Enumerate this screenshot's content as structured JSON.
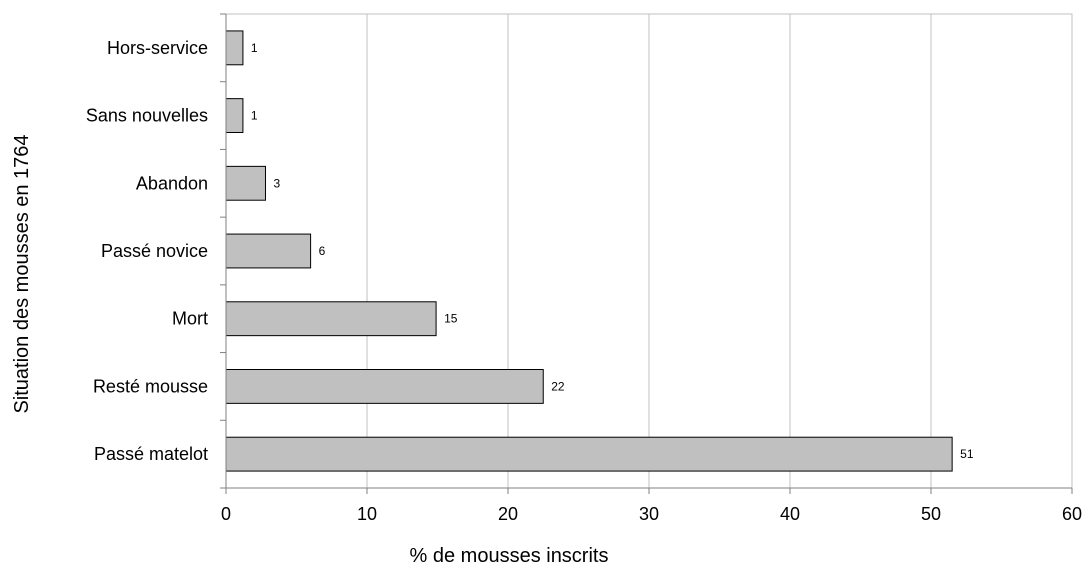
{
  "chart_data": {
    "type": "bar",
    "orientation": "horizontal",
    "categories": [
      "Hors-service",
      "Sans nouvelles",
      "Abandon",
      "Passé novice",
      "Mort",
      "Resté mousse",
      "Passé matelot"
    ],
    "values": [
      1.2,
      1.2,
      2.8,
      6.0,
      14.9,
      22.5,
      51.5
    ],
    "data_labels": [
      "1",
      "1",
      "3",
      "6",
      "15",
      "22",
      "51"
    ],
    "xlabel": "% de mousses inscrits",
    "ylabel": "Situation des mousses en 1764",
    "xlim": [
      0,
      60
    ],
    "xticks": [
      "0",
      "10",
      "20",
      "30",
      "40",
      "50",
      "60"
    ],
    "grid": "vertical",
    "legend": "none",
    "colors": {
      "bar_fill": "#c0c0c0",
      "bar_stroke": "#000000",
      "grid": "#c0c0c0",
      "axis": "#808080"
    }
  }
}
